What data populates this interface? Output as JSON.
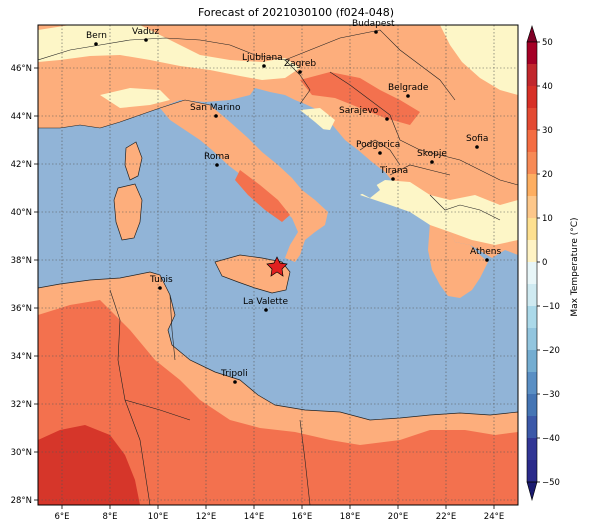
{
  "title": "Forecast of 2021030100 (f024-048)",
  "colors": {
    "sea": "#91b4d7",
    "land_0_10": "#fdf6c7",
    "land_10_20": "#fdae7c",
    "land_20_30": "#f3714e",
    "land_30_40": "#d6362a",
    "border": "#222222",
    "grid": "#555555"
  },
  "x_ticks": [
    "6°E",
    "8°E",
    "10°E",
    "12°E",
    "14°E",
    "16°E",
    "18°E",
    "20°E",
    "22°E",
    "24°E"
  ],
  "y_ticks": [
    "46°N",
    "44°N",
    "42°N",
    "40°N",
    "38°N",
    "36°N",
    "34°N",
    "32°N",
    "30°N",
    "28°N"
  ],
  "cities": [
    {
      "name": "Bern"
    },
    {
      "name": "Vaduz"
    },
    {
      "name": "Budapest"
    },
    {
      "name": "Ljubljana"
    },
    {
      "name": "Zagreb"
    },
    {
      "name": "Belgrade"
    },
    {
      "name": "San Marino"
    },
    {
      "name": "Sarajevo"
    },
    {
      "name": "Roma"
    },
    {
      "name": "Podgorica"
    },
    {
      "name": "Skopje"
    },
    {
      "name": "Sofia"
    },
    {
      "name": "Tirana"
    },
    {
      "name": "Athens"
    },
    {
      "name": "Tunis"
    },
    {
      "name": "La Valette"
    },
    {
      "name": "Tripoli"
    }
  ],
  "marker": {
    "icon": "red-star-icon"
  },
  "colorbar": {
    "label": "Max Temperature (°C)",
    "ticks": [
      "50",
      "40",
      "30",
      "20",
      "10",
      "0",
      "−10",
      "−20",
      "−30",
      "−40",
      "−50"
    ]
  }
}
